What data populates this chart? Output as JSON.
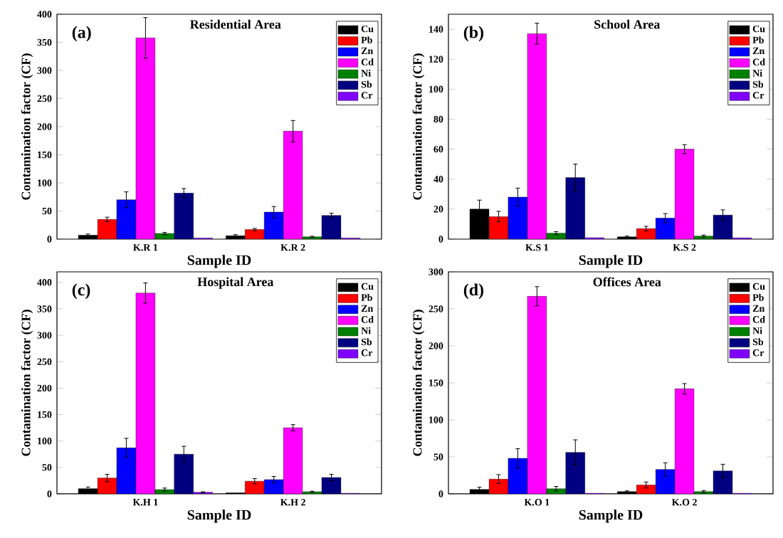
{
  "chart_data": [
    {
      "type": "bar",
      "title": "Residential Area",
      "annotations": [
        "(a)"
      ],
      "xlabel": "Sample ID",
      "ylabel": "Contamination factor (CF)",
      "categories": [
        "K.R 1",
        "K.R 2"
      ],
      "ylim": [
        0,
        400
      ],
      "yticks": [
        0,
        50,
        100,
        150,
        200,
        250,
        300,
        350,
        400
      ],
      "legend": "top right",
      "series": [
        {
          "name": "Cu",
          "color": "#000000",
          "values": [
            7,
            6
          ],
          "errors": [
            2,
            2
          ]
        },
        {
          "name": "Pb",
          "color": "#ff0000",
          "values": [
            35,
            17
          ],
          "errors": [
            4,
            2
          ]
        },
        {
          "name": "Zn",
          "color": "#0000ff",
          "values": [
            70,
            48
          ],
          "errors": [
            14,
            10
          ]
        },
        {
          "name": "Cd",
          "color": "#ff00ff",
          "values": [
            358,
            192
          ],
          "errors": [
            36,
            19
          ]
        },
        {
          "name": "Ni",
          "color": "#008000",
          "values": [
            10,
            4
          ],
          "errors": [
            2,
            1
          ]
        },
        {
          "name": "Sb",
          "color": "#000080",
          "values": [
            82,
            42
          ],
          "errors": [
            8,
            4
          ]
        },
        {
          "name": "Cr",
          "color": "#8000ff",
          "values": [
            2,
            2
          ],
          "errors": [
            null,
            null
          ]
        }
      ]
    },
    {
      "type": "bar",
      "title": "School Area",
      "annotations": [
        "(b)"
      ],
      "xlabel": "Sample ID",
      "ylabel": "Contamination factor (CF)",
      "categories": [
        "K.S 1",
        "K.S 2"
      ],
      "ylim": [
        0,
        150
      ],
      "yticks": [
        0,
        20,
        40,
        60,
        80,
        100,
        120,
        140
      ],
      "legend": "top right",
      "series": [
        {
          "name": "Cu",
          "color": "#000000",
          "values": [
            20,
            1.5
          ],
          "errors": [
            6,
            0.5
          ]
        },
        {
          "name": "Pb",
          "color": "#ff0000",
          "values": [
            15,
            7
          ],
          "errors": [
            3.5,
            1.5
          ]
        },
        {
          "name": "Zn",
          "color": "#0000ff",
          "values": [
            28,
            14
          ],
          "errors": [
            6,
            3
          ]
        },
        {
          "name": "Cd",
          "color": "#ff00ff",
          "values": [
            137,
            60
          ],
          "errors": [
            7,
            3
          ]
        },
        {
          "name": "Ni",
          "color": "#008000",
          "values": [
            4,
            2
          ],
          "errors": [
            1,
            0.7
          ]
        },
        {
          "name": "Sb",
          "color": "#000080",
          "values": [
            41,
            16
          ],
          "errors": [
            9,
            3.5
          ]
        },
        {
          "name": "Cr",
          "color": "#8000ff",
          "values": [
            1,
            0.8
          ],
          "errors": [
            null,
            null
          ]
        }
      ]
    },
    {
      "type": "bar",
      "title": "Hospital Area",
      "annotations": [
        "(c)"
      ],
      "xlabel": "Sample ID",
      "ylabel": "Contamination factor (CF)",
      "categories": [
        "K.H 1",
        "K.H 2"
      ],
      "ylim": [
        0,
        420
      ],
      "yticks": [
        0,
        50,
        100,
        150,
        200,
        250,
        300,
        350,
        400
      ],
      "legend": "top right",
      "series": [
        {
          "name": "Cu",
          "color": "#000000",
          "values": [
            10,
            2
          ],
          "errors": [
            3,
            null
          ]
        },
        {
          "name": "Pb",
          "color": "#ff0000",
          "values": [
            30,
            24
          ],
          "errors": [
            7,
            5
          ]
        },
        {
          "name": "Zn",
          "color": "#0000ff",
          "values": [
            87,
            27
          ],
          "errors": [
            18,
            6
          ]
        },
        {
          "name": "Cd",
          "color": "#ff00ff",
          "values": [
            380,
            125
          ],
          "errors": [
            19,
            6
          ]
        },
        {
          "name": "Ni",
          "color": "#008000",
          "values": [
            8,
            4
          ],
          "errors": [
            3,
            1
          ]
        },
        {
          "name": "Sb",
          "color": "#000080",
          "values": [
            75,
            31
          ],
          "errors": [
            15,
            6
          ]
        },
        {
          "name": "Cr",
          "color": "#8000ff",
          "values": [
            3,
            1
          ],
          "errors": [
            1,
            null
          ]
        }
      ]
    },
    {
      "type": "bar",
      "title": "Offices Area",
      "annotations": [
        "(d)"
      ],
      "xlabel": "Sample ID",
      "ylabel": "Contamination factor (CF)",
      "categories": [
        "K.O 1",
        "K.O 2"
      ],
      "ylim": [
        0,
        300
      ],
      "yticks": [
        0,
        50,
        100,
        150,
        200,
        250,
        300
      ],
      "legend": "top right",
      "series": [
        {
          "name": "Cu",
          "color": "#000000",
          "values": [
            6,
            3
          ],
          "errors": [
            3,
            1
          ]
        },
        {
          "name": "Pb",
          "color": "#ff0000",
          "values": [
            20,
            12
          ],
          "errors": [
            6,
            4
          ]
        },
        {
          "name": "Zn",
          "color": "#0000ff",
          "values": [
            48,
            33
          ],
          "errors": [
            13,
            9
          ]
        },
        {
          "name": "Cd",
          "color": "#ff00ff",
          "values": [
            267,
            142
          ],
          "errors": [
            13,
            7
          ]
        },
        {
          "name": "Ni",
          "color": "#008000",
          "values": [
            7,
            3
          ],
          "errors": [
            3,
            1.5
          ]
        },
        {
          "name": "Sb",
          "color": "#000080",
          "values": [
            56,
            31
          ],
          "errors": [
            17,
            9
          ]
        },
        {
          "name": "Cr",
          "color": "#8000ff",
          "values": [
            1,
            1
          ],
          "errors": [
            null,
            null
          ]
        }
      ]
    }
  ]
}
